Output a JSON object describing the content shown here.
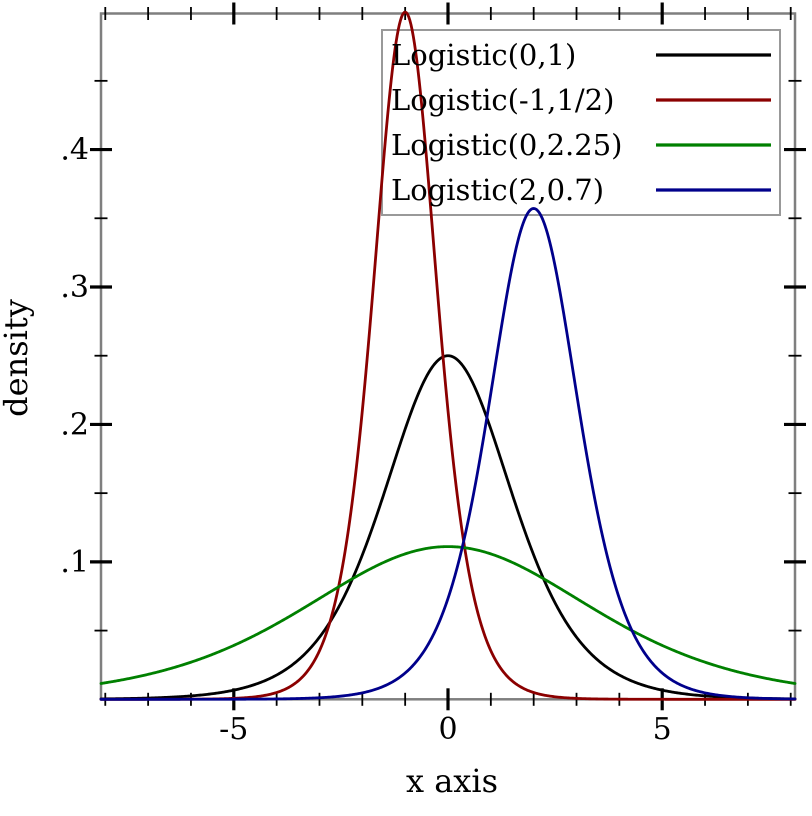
{
  "figure": {
    "background": "#ffffff",
    "border_color": "#7f7f7f",
    "tick_color": "#000000",
    "text_color": "#000000",
    "xlabel": "x axis",
    "ylabel": "density"
  },
  "axes": {
    "xlim": [
      -8.1,
      8.1
    ],
    "ylim": [
      0,
      0.499
    ],
    "x_major_ticks": [
      -5,
      0,
      5
    ],
    "x_major_labels": [
      "-5",
      "0",
      "5"
    ],
    "x_minor_ticks": [
      -8,
      -7,
      -6,
      -4,
      -3,
      -2,
      -1,
      1,
      2,
      3,
      4,
      6,
      7,
      8
    ],
    "y_major_ticks": [
      0.1,
      0.2,
      0.3,
      0.4
    ],
    "y_major_labels": [
      ".1",
      ".2",
      ".3",
      ".4"
    ],
    "y_minor_ticks": [
      0.05,
      0.15,
      0.25,
      0.35,
      0.45
    ],
    "mirror_ticks": true,
    "grid": false
  },
  "legend": {
    "position": "top-right-inside",
    "border_color": "#999999"
  },
  "chart_data": {
    "type": "line",
    "title": "",
    "xlabel": "x axis",
    "ylabel": "density",
    "xlim": [
      -8.1,
      8.1
    ],
    "ylim": [
      0,
      0.499
    ],
    "grid": false,
    "legend_position": "top-right-inside",
    "curve_family": "logistic probability density f(x) = exp(-(x-mu)/s) / (s*(1+exp(-(x-mu)/s))^2)",
    "x_values": [
      -8,
      -7,
      -6,
      -5,
      -4,
      -3,
      -2,
      -1,
      0,
      1,
      2,
      3,
      4,
      5,
      6,
      7,
      8
    ],
    "series": [
      {
        "name": "Logistic(0,1)",
        "color": "#000000",
        "mu": 0,
        "s": 1,
        "peak": {
          "x": 0,
          "y": 0.25
        },
        "values": [
          0.0003,
          0.0009,
          0.0025,
          0.0066,
          0.0177,
          0.0452,
          0.105,
          0.1966,
          0.25,
          0.1966,
          0.105,
          0.0452,
          0.0177,
          0.0066,
          0.0025,
          0.0009,
          0.0003
        ]
      },
      {
        "name": "Logistic(-1,1/2)",
        "color": "#8b0000",
        "mu": -1,
        "s": 0.5,
        "peak": {
          "x": -1,
          "y": 0.5
        },
        "values": [
          0,
          0,
          0.0001,
          0.0007,
          0.0049,
          0.0353,
          0.21,
          0.5,
          0.21,
          0.0353,
          0.0049,
          0.0007,
          0.0001,
          0,
          0,
          0,
          0
        ]
      },
      {
        "name": "Logistic(0,2.25)",
        "color": "#008000",
        "mu": 0,
        "s": 2.25,
        "peak": {
          "x": 0,
          "y": 0.1111
        },
        "values": [
          0.012,
          0.0184,
          0.0271,
          0.0391,
          0.055,
          0.0734,
          0.0918,
          0.1058,
          0.1111,
          0.1058,
          0.0918,
          0.0734,
          0.055,
          0.0391,
          0.0271,
          0.0184,
          0.012
        ]
      },
      {
        "name": "Logistic(2,0.7)",
        "color": "#00008b",
        "mu": 2,
        "s": 0.7,
        "peak": {
          "x": 2,
          "y": 0.3571
        },
        "values": [
          0,
          0,
          0,
          0.0001,
          0.0003,
          0.0011,
          0.0047,
          0.0191,
          0.0734,
          0.2228,
          0.3571,
          0.2228,
          0.0734,
          0.0191,
          0.0047,
          0.0011,
          0.0003
        ]
      }
    ]
  }
}
